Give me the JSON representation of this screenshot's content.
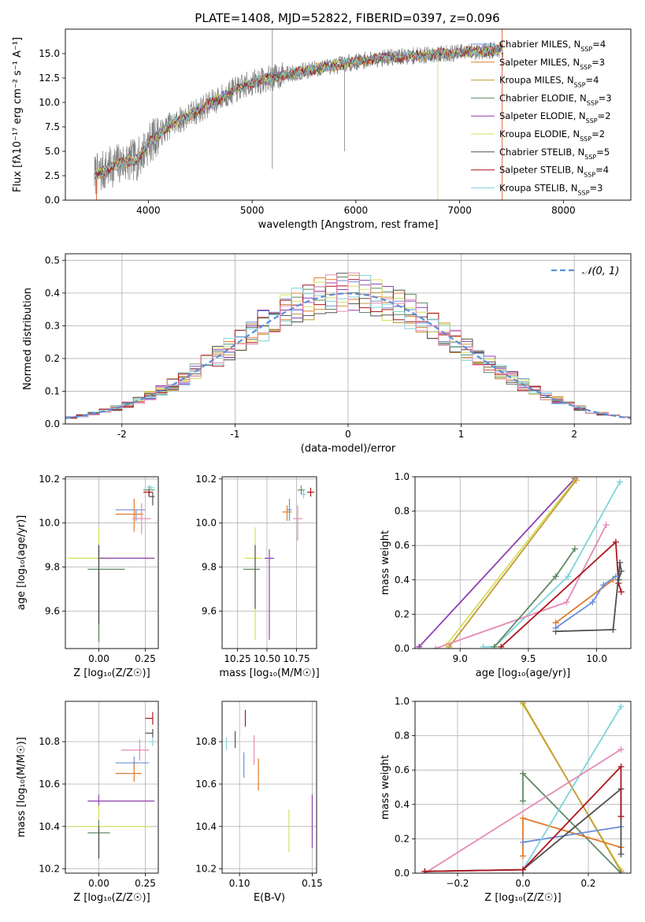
{
  "colors": {
    "Chabrier MILES": "#6a8fd8",
    "Salpeter MILES": "#e07b2a",
    "Kroupa MILES": "#c59a3a",
    "Chabrier ELODIE": "#5f8a63",
    "Salpeter ELODIE": "#8e3fb0",
    "Kroupa ELODIE": "#d6e05a",
    "Chabrier STELIB": "#505050",
    "Salpeter STELIB": "#b0151d",
    "Kroupa STELIB": "#7fd3dc",
    "pink": "#e58bb6",
    "gaussian": "#5b8fd6",
    "spectrum": "#808080"
  },
  "chart_data": [
    {
      "id": "spectrum",
      "type": "line",
      "title": "PLATE=1408, MJD=52822, FIBERID=0397, z=0.096",
      "xlabel": "wavelength [Angstrom, rest frame]",
      "ylabel": "Flux [fλ10⁻¹⁷ erg cm⁻² s⁻¹ A⁻¹]",
      "xlim": [
        3200,
        8650
      ],
      "ylim": [
        0,
        17.5
      ],
      "xticks": [
        4000,
        5000,
        6000,
        7000,
        8000
      ],
      "yticks": [
        0.0,
        2.5,
        5.0,
        7.5,
        10.0,
        12.5,
        15.0
      ],
      "grid": false,
      "legend": {
        "position": "upper right",
        "entries": [
          "Chabrier MILES, N_SSP=4",
          "Salpeter MILES, N_SSP=3",
          "Kroupa MILES, N_SSP=4",
          "Chabrier ELODIE, N_SSP=3",
          "Salpeter ELODIE, N_SSP=2",
          "Kroupa ELODIE, N_SSP=2",
          "Chabrier STELIB, N_SSP=5",
          "Salpeter STELIB, N_SSP=4",
          "Kroupa STELIB, N_SSP=3"
        ],
        "keys": [
          "Chabrier MILES",
          "Salpeter MILES",
          "Kroupa MILES",
          "Chabrier ELODIE",
          "Salpeter ELODIE",
          "Kroupa ELODIE",
          "Chabrier STELIB",
          "Salpeter STELIB",
          "Kroupa STELIB"
        ]
      },
      "continuum_x": [
        3500,
        3700,
        3900,
        4000,
        4200,
        4500,
        4800,
        5000,
        5300,
        5600,
        5900,
        6200,
        6600,
        7000,
        7400
      ],
      "continuum_y": [
        2.6,
        3.7,
        4.2,
        5.8,
        7.6,
        9.3,
        11.1,
        12.0,
        12.8,
        13.4,
        14.0,
        14.5,
        14.8,
        15.1,
        15.4
      ]
    },
    {
      "id": "residuals",
      "type": "histogram",
      "xlabel": "(data-model)/error",
      "ylabel": "Normed distribution",
      "xlim": [
        -2.5,
        2.5
      ],
      "ylim": [
        0,
        0.52
      ],
      "xticks": [
        -2,
        -1,
        0,
        1,
        2
      ],
      "yticks": [
        0.0,
        0.1,
        0.2,
        0.3,
        0.4,
        0.5
      ],
      "grid": true,
      "bin_width": 0.1,
      "gaussian_label": "𝒩(0, 1)",
      "legend": {
        "position": "upper right"
      }
    },
    {
      "id": "age_vs_z",
      "type": "errorbar",
      "xlabel": "Z [log₁₀(Z/Z☉)]",
      "ylabel": "age  [log₁₀(age/yr)]",
      "xlim": [
        -0.18,
        0.32
      ],
      "ylim": [
        9.43,
        10.21
      ],
      "xticks": [
        0.0,
        0.25
      ],
      "yticks": [
        9.6,
        9.8,
        10.0,
        10.2
      ],
      "grid": true,
      "points": [
        {
          "key": "Chabrier MILES",
          "x": 0.2,
          "y": 10.06,
          "xerr": [
            0.11,
            0.05
          ],
          "yerr": [
            0.05,
            0.0
          ]
        },
        {
          "key": "Salpeter MILES",
          "x": 0.19,
          "y": 10.04,
          "xerr": [
            0.1,
            0.05
          ],
          "yerr": [
            0.08,
            0.07
          ]
        },
        {
          "key": "pink",
          "x": 0.23,
          "y": 10.02,
          "xerr": [
            0.05,
            0.05
          ],
          "yerr": [
            0.07,
            0.07
          ]
        },
        {
          "key": "Chabrier ELODIE",
          "x": 0.27,
          "y": 10.15,
          "xerr": [
            0.03,
            0.03
          ],
          "yerr": [
            0.02,
            0.02
          ]
        },
        {
          "key": "Salpeter STELIB",
          "x": 0.27,
          "y": 10.14,
          "xerr": [
            0.03,
            0.02
          ],
          "yerr": [
            0.02,
            0.01
          ]
        },
        {
          "key": "Chabrier STELIB",
          "x": 0.29,
          "y": 10.12,
          "xerr": [
            0.02,
            0.01
          ],
          "yerr": [
            0.04,
            0.02
          ]
        },
        {
          "key": "Kroupa STELIB",
          "x": 0.28,
          "y": 10.16,
          "xerr": [
            0.02,
            0.02
          ],
          "yerr": [
            0.01,
            0.01
          ]
        },
        {
          "key": "Kroupa ELODIE",
          "x": 0.0,
          "y": 9.84,
          "xerr": [
            0.17,
            0.28
          ],
          "yerr": [
            0.38,
            0.14
          ]
        },
        {
          "key": "Salpeter ELODIE",
          "x": 0.0,
          "y": 9.84,
          "xerr": [
            0.0,
            0.3
          ],
          "yerr": [
            0.37,
            0.06
          ]
        },
        {
          "key": "Chabrier ELODIE",
          "x": 0.0,
          "y": 9.79,
          "xerr": [
            0.06,
            0.14
          ],
          "yerr": [
            0.33,
            0.11
          ]
        },
        {
          "key": "Chabrier STELIB",
          "x": 0.0,
          "y": 9.84,
          "xerr": [
            0.0,
            0.0
          ],
          "yerr": [
            0.3,
            0.06
          ]
        }
      ]
    },
    {
      "id": "age_vs_mass",
      "type": "errorbar",
      "xlabel": "mass [log₁₀(M/M☉)]",
      "ylabel": "",
      "xlim": [
        10.12,
        10.92
      ],
      "ylim": [
        9.43,
        10.21
      ],
      "xticks": [
        10.25,
        10.5,
        10.75
      ],
      "xticklabels": [
        "10.25",
        "10.50",
        "10.75"
      ],
      "yticks": [
        9.6,
        9.8,
        10.0,
        10.2
      ],
      "grid": true,
      "points": [
        {
          "key": "Salpeter STELIB",
          "x": 10.87,
          "y": 10.14,
          "xerr": [
            0.03,
            0.03
          ],
          "yerr": [
            0.02,
            0.02
          ]
        },
        {
          "key": "Chabrier ELODIE",
          "x": 10.79,
          "y": 10.15,
          "xerr": [
            0.03,
            0.03
          ],
          "yerr": [
            0.02,
            0.02
          ]
        },
        {
          "key": "Kroupa STELIB",
          "x": 10.81,
          "y": 10.13,
          "xerr": [
            0.02,
            0.02
          ],
          "yerr": [
            0.02,
            0.02
          ]
        },
        {
          "key": "Salpeter MILES",
          "x": 10.67,
          "y": 10.05,
          "xerr": [
            0.04,
            0.04
          ],
          "yerr": [
            0.04,
            0.03
          ]
        },
        {
          "key": "Chabrier MILES",
          "x": 10.69,
          "y": 10.06,
          "xerr": [
            0.02,
            0.02
          ],
          "yerr": [
            0.05,
            0.05
          ]
        },
        {
          "key": "pink",
          "x": 10.76,
          "y": 10.02,
          "xerr": [
            0.04,
            0.04
          ],
          "yerr": [
            0.1,
            0.06
          ]
        },
        {
          "key": "Salpeter ELODIE",
          "x": 10.52,
          "y": 9.84,
          "xerr": [
            0.04,
            0.04
          ],
          "yerr": [
            0.37,
            0.04
          ]
        },
        {
          "key": "Kroupa ELODIE",
          "x": 10.4,
          "y": 9.84,
          "xerr": [
            0.09,
            0.06
          ],
          "yerr": [
            0.37,
            0.14
          ]
        },
        {
          "key": "Chabrier ELODIE",
          "x": 10.37,
          "y": 9.79,
          "xerr": [
            0.07,
            0.07
          ],
          "yerr": [
            0.0,
            0.0
          ]
        },
        {
          "key": "Chabrier STELIB",
          "x": 10.4,
          "y": 9.84,
          "xerr": [
            0.0,
            0.0
          ],
          "yerr": [
            0.23,
            0.06
          ]
        }
      ]
    },
    {
      "id": "weight_vs_age",
      "type": "line",
      "xlabel": "age  [log₁₀(age/yr)]",
      "ylabel": "mass weight",
      "xlim": [
        8.67,
        10.25
      ],
      "ylim": [
        0,
        1.0
      ],
      "xticks": [
        9.0,
        9.5,
        10.0
      ],
      "yticks": [
        0.0,
        0.2,
        0.4,
        0.6,
        0.8,
        1.0
      ],
      "grid": true,
      "series": [
        {
          "key": "Salpeter ELODIE",
          "x": [
            8.7,
            9.84
          ],
          "y": [
            0.01,
            0.99
          ]
        },
        {
          "key": "Kroupa ELODIE",
          "x": [
            8.9,
            9.84
          ],
          "y": [
            0.02,
            0.98
          ]
        },
        {
          "key": "Kroupa MILES",
          "x": [
            8.92,
            9.85
          ],
          "y": [
            0.01,
            0.98
          ]
        },
        {
          "key": "Kroupa STELIB",
          "x": [
            9.17,
            9.25,
            9.79,
            10.17
          ],
          "y": [
            0.01,
            0.01,
            0.42,
            0.97
          ]
        },
        {
          "key": "pink",
          "x": [
            8.82,
            9.78,
            10.07
          ],
          "y": [
            0.0,
            0.27,
            0.72
          ]
        },
        {
          "key": "Chabrier ELODIE",
          "x": [
            9.25,
            9.7,
            9.84
          ],
          "y": [
            0.01,
            0.42,
            0.58
          ]
        },
        {
          "key": "Salpeter STELIB",
          "x": [
            9.3,
            10.14,
            10.16,
            10.18
          ],
          "y": [
            0.01,
            0.62,
            0.38,
            0.33
          ]
        },
        {
          "key": "Chabrier STELIB",
          "x": [
            9.7,
            10.12,
            10.17,
            10.18,
            10.16
          ],
          "y": [
            0.1,
            0.11,
            0.5,
            0.45,
            0.4
          ]
        },
        {
          "key": "Salpeter MILES",
          "x": [
            9.7,
            10.12
          ],
          "y": [
            0.15,
            0.4
          ]
        },
        {
          "key": "Chabrier MILES",
          "x": [
            9.7,
            9.97,
            10.05,
            10.14
          ],
          "y": [
            0.12,
            0.27,
            0.37,
            0.42
          ]
        }
      ]
    },
    {
      "id": "mass_vs_z",
      "type": "errorbar",
      "xlabel": "Z [log₁₀(Z/Z☉)]",
      "ylabel": "mass [log₁₀(M/M☉)]",
      "xlim": [
        -0.18,
        0.32
      ],
      "ylim": [
        10.18,
        10.99
      ],
      "xticks": [
        0.0,
        0.25
      ],
      "yticks": [
        10.2,
        10.4,
        10.6,
        10.8
      ],
      "grid": true,
      "points": [
        {
          "key": "Salpeter STELIB",
          "x": 0.29,
          "y": 10.91,
          "xerr": [
            0.04,
            0.0
          ],
          "yerr": [
            0.03,
            0.03
          ]
        },
        {
          "key": "Chabrier STELIB",
          "x": 0.29,
          "y": 10.84,
          "xerr": [
            0.04,
            0.0
          ],
          "yerr": [
            0.02,
            0.02
          ]
        },
        {
          "key": "Kroupa STELIB",
          "x": 0.29,
          "y": 10.8,
          "xerr": [
            0.02,
            0.0
          ],
          "yerr": [
            0.02,
            0.02
          ]
        },
        {
          "key": "pink",
          "x": 0.22,
          "y": 10.76,
          "xerr": [
            0.1,
            0.05
          ],
          "yerr": [
            0.05,
            0.05
          ]
        },
        {
          "key": "Chabrier MILES",
          "x": 0.19,
          "y": 10.7,
          "xerr": [
            0.1,
            0.08
          ],
          "yerr": [
            0.03,
            0.03
          ]
        },
        {
          "key": "Salpeter MILES",
          "x": 0.19,
          "y": 10.65,
          "xerr": [
            0.1,
            0.04
          ],
          "yerr": [
            0.04,
            0.05
          ]
        },
        {
          "key": "Salpeter ELODIE",
          "x": 0.0,
          "y": 10.52,
          "xerr": [
            0.06,
            0.3
          ],
          "yerr": [
            0.04,
            0.03
          ]
        },
        {
          "key": "Kroupa ELODIE",
          "x": 0.0,
          "y": 10.4,
          "xerr": [
            0.17,
            0.28
          ],
          "yerr": [
            0.1,
            0.1
          ]
        },
        {
          "key": "Chabrier ELODIE",
          "x": 0.0,
          "y": 10.37,
          "xerr": [
            0.06,
            0.06
          ],
          "yerr": [
            0.12,
            0.06
          ]
        },
        {
          "key": "Chabrier STELIB",
          "x": 0.0,
          "y": 10.4,
          "xerr": [
            0.0,
            0.0
          ],
          "yerr": [
            0.15,
            0.0
          ]
        }
      ]
    },
    {
      "id": "mass_vs_ebv",
      "type": "errorbar",
      "xlabel": "E(B-V)",
      "ylabel": "",
      "xlim": [
        0.088,
        0.153
      ],
      "ylim": [
        10.18,
        10.99
      ],
      "xticks": [
        0.1,
        0.15
      ],
      "xticklabels": [
        "0.10",
        "0.15"
      ],
      "yticks": [
        10.2,
        10.4,
        10.6,
        10.8
      ],
      "grid": true,
      "points": [
        {
          "key": "Kroupa STELIB",
          "x": 0.091,
          "y": 10.79,
          "xerr": [
            0,
            0
          ],
          "yerr": [
            0.03,
            0.03
          ]
        },
        {
          "key": "Chabrier STELIB",
          "x": 0.097,
          "y": 10.81,
          "xerr": [
            0,
            0
          ],
          "yerr": [
            0.04,
            0.04
          ]
        },
        {
          "key": "Salpeter STELIB",
          "x": 0.104,
          "y": 10.91,
          "xerr": [
            0,
            0
          ],
          "yerr": [
            0.04,
            0.04
          ]
        },
        {
          "key": "Chabrier MILES",
          "x": 0.103,
          "y": 10.69,
          "xerr": [
            0,
            0
          ],
          "yerr": [
            0.06,
            0.06
          ]
        },
        {
          "key": "pink",
          "x": 0.11,
          "y": 10.76,
          "xerr": [
            0,
            0
          ],
          "yerr": [
            0.07,
            0.07
          ]
        },
        {
          "key": "Salpeter MILES",
          "x": 0.113,
          "y": 10.65,
          "xerr": [
            0,
            0
          ],
          "yerr": [
            0.08,
            0.07
          ]
        },
        {
          "key": "Kroupa ELODIE",
          "x": 0.134,
          "y": 10.38,
          "xerr": [
            0,
            0
          ],
          "yerr": [
            0.1,
            0.1
          ]
        },
        {
          "key": "Salpeter ELODIE",
          "x": 0.15,
          "y": 10.42,
          "xerr": [
            0,
            0
          ],
          "yerr": [
            0.12,
            0.13
          ]
        }
      ]
    },
    {
      "id": "weight_vs_z",
      "type": "line",
      "xlabel": "Z [log₁₀(Z/Z☉)]",
      "ylabel": "mass weight",
      "xlim": [
        -0.33,
        0.33
      ],
      "ylim": [
        0,
        1.0
      ],
      "xticks": [
        -0.2,
        0.0,
        0.2
      ],
      "xticklabels": [
        "−0.2",
        "0.0",
        "0.2"
      ],
      "yticks": [
        0.0,
        0.2,
        0.4,
        0.6,
        0.8,
        1.0
      ],
      "grid": true,
      "series": [
        {
          "key": "Kroupa ELODIE",
          "x": [
            0.0,
            0.3
          ],
          "y": [
            0.98,
            0.02
          ]
        },
        {
          "key": "Kroupa MILES",
          "x": [
            0.0,
            0.3
          ],
          "y": [
            0.99,
            0.01
          ]
        },
        {
          "key": "Chabrier ELODIE",
          "x": [
            0.0,
            0.0,
            0.3
          ],
          "y": [
            0.42,
            0.58,
            0.0
          ]
        },
        {
          "key": "Salpeter MILES",
          "x": [
            0.0,
            0.0,
            0.3
          ],
          "y": [
            0.1,
            0.32,
            0.15
          ]
        },
        {
          "key": "Chabrier MILES",
          "x": [
            0.0,
            0.3
          ],
          "y": [
            0.18,
            0.27
          ]
        },
        {
          "key": "Kroupa STELIB",
          "x": [
            -0.3,
            0.0,
            0.3
          ],
          "y": [
            0.01,
            0.02,
            0.97
          ]
        },
        {
          "key": "pink",
          "x": [
            -0.3,
            0.3
          ],
          "y": [
            0.0,
            0.72
          ]
        },
        {
          "key": "Chabrier STELIB",
          "x": [
            -0.3,
            0.0,
            0.3,
            0.3
          ],
          "y": [
            0.01,
            0.02,
            0.49,
            0.11
          ]
        },
        {
          "key": "Salpeter STELIB",
          "x": [
            -0.3,
            0.0,
            0.3,
            0.3
          ],
          "y": [
            0.01,
            0.02,
            0.62,
            0.33
          ]
        }
      ]
    }
  ]
}
